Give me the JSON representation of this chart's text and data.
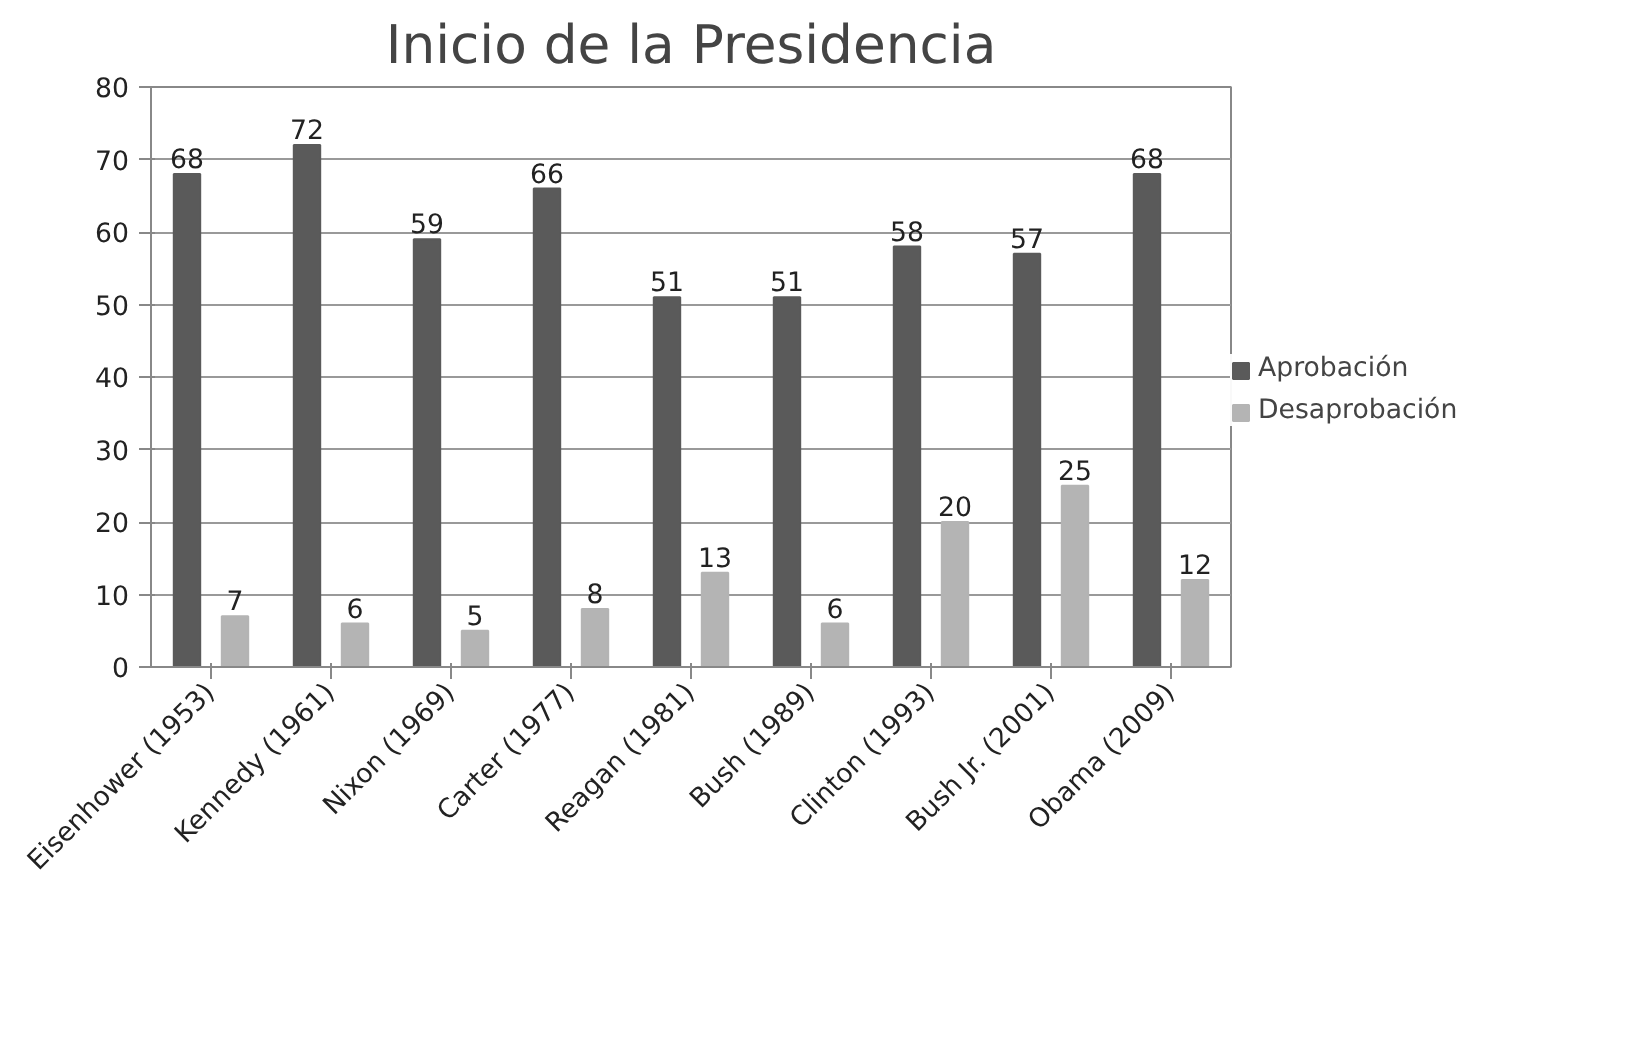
{
  "chart_data": {
    "type": "bar",
    "title": "Inicio de la Presidencia",
    "categories": [
      "Eisenhower (1953)",
      "Kennedy (1961)",
      "Nixon (1969)",
      "Carter (1977)",
      "Reagan (1981)",
      "Bush (1989)",
      "Clinton (1993)",
      "Bush Jr. (2001)",
      "Obama (2009)"
    ],
    "series": [
      {
        "name": "Aprobación",
        "color": "#5a5a5a",
        "values": [
          68,
          72,
          59,
          66,
          51,
          51,
          58,
          57,
          68
        ]
      },
      {
        "name": "Desaprobación",
        "color": "#b4b4b4",
        "values": [
          7,
          6,
          5,
          8,
          13,
          6,
          20,
          25,
          12
        ]
      }
    ],
    "ylim": [
      0,
      80
    ],
    "yticks": [
      0,
      10,
      20,
      30,
      40,
      50,
      60,
      70,
      80
    ],
    "grid": "y",
    "legend": "right",
    "data_labels": true
  }
}
